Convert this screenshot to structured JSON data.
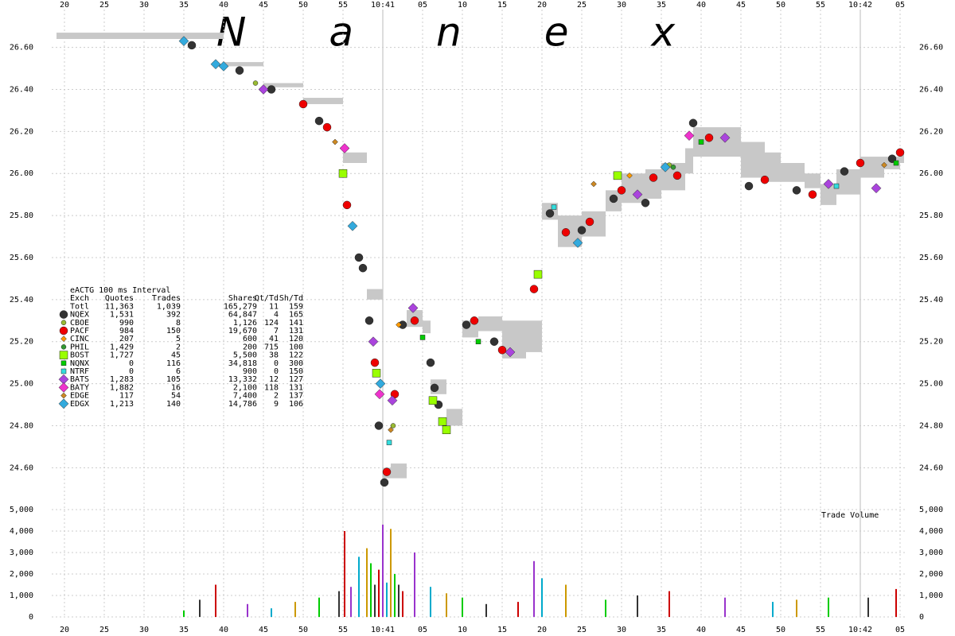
{
  "chart_data": {
    "type": "scatter",
    "title": "Nanex",
    "title_color": "#9999ff",
    "xlim": [
      18.4,
      125.9
    ],
    "xticks": [
      20,
      25,
      30,
      35,
      40,
      45,
      50,
      55,
      {
        "value": 60,
        "label": "10:41"
      },
      {
        "value": 65,
        "label": "05"
      },
      {
        "value": 70,
        "label": "10"
      },
      {
        "value": 75,
        "label": "15"
      },
      {
        "value": 80,
        "label": "20"
      },
      {
        "value": 85,
        "label": "25"
      },
      {
        "value": 90,
        "label": "30"
      },
      {
        "value": 95,
        "label": "35"
      },
      {
        "value": 100,
        "label": "40"
      },
      {
        "value": 105,
        "label": "45"
      },
      {
        "value": 110,
        "label": "50"
      },
      {
        "value": 115,
        "label": "55"
      },
      {
        "value": 120,
        "label": "10:42"
      },
      {
        "value": 125,
        "label": "05"
      }
    ],
    "ylim": [
      24.45,
      26.78
    ],
    "yticks": [
      {
        "value": 24.6,
        "label": "24.60"
      },
      {
        "value": 24.8,
        "label": "24.80"
      },
      {
        "value": 25.0,
        "label": "25.00"
      },
      {
        "value": 25.2,
        "label": "25.20"
      },
      {
        "value": 25.4,
        "label": "25.40"
      },
      {
        "value": 25.6,
        "label": "25.60"
      },
      {
        "value": 25.8,
        "label": "25.80"
      },
      {
        "value": 26.0,
        "label": "26.00"
      },
      {
        "value": 26.2,
        "label": "26.20"
      },
      {
        "value": 26.4,
        "label": "26.40"
      },
      {
        "value": 26.6,
        "label": "26.60"
      }
    ],
    "grid": true,
    "band": {
      "color": "#c8c8c8",
      "x": [
        19,
        35,
        40,
        45,
        50,
        55,
        58,
        60,
        61,
        63,
        65,
        66,
        68,
        70,
        72,
        75,
        78,
        80,
        82,
        85,
        88,
        90,
        93,
        95,
        98,
        99,
        104,
        105,
        108,
        110,
        113,
        115,
        117,
        120,
        123,
        125
      ],
      "low": [
        26.64,
        26.64,
        26.51,
        26.41,
        26.33,
        26.05,
        25.4,
        24.55,
        24.55,
        25.27,
        25.24,
        24.95,
        24.8,
        25.22,
        25.25,
        25.12,
        25.15,
        25.78,
        25.65,
        25.7,
        25.82,
        25.86,
        25.88,
        25.92,
        26.0,
        26.08,
        26.08,
        25.98,
        25.96,
        25.96,
        25.93,
        25.85,
        25.9,
        25.98,
        26.02,
        26.05
      ],
      "high": [
        26.67,
        26.67,
        26.53,
        26.43,
        26.36,
        26.1,
        25.45,
        24.6,
        24.62,
        25.35,
        25.3,
        25.02,
        24.88,
        25.3,
        25.32,
        25.3,
        25.3,
        25.86,
        25.8,
        25.82,
        25.92,
        26.0,
        26.02,
        26.05,
        26.12,
        26.22,
        26.22,
        26.15,
        26.1,
        26.05,
        26.0,
        25.95,
        26.02,
        26.08,
        26.08,
        26.1
      ]
    },
    "stats": {
      "title": "eACTG 100 ms Interval",
      "columns": [
        "Exch",
        "Quotes",
        "Trades",
        "Shares",
        "Qt/Td",
        "Sh/Td"
      ],
      "total": [
        "Totl",
        "11,363",
        "1,039",
        "165,279",
        "11",
        "159"
      ]
    },
    "series": [
      {
        "name": "NQEX",
        "quotes": "1,531",
        "trades": "392",
        "shares": "64,847",
        "qt_td": "4",
        "sh_td": "165",
        "color": "#333333",
        "marker": "circle",
        "x": [
          36,
          42,
          46,
          52,
          57,
          57.5,
          58.3,
          59.5,
          60.2,
          62.5,
          66,
          66.5,
          67,
          70.5,
          74,
          81,
          85,
          89,
          93,
          99,
          106,
          112,
          118,
          124
        ],
        "values": [
          26.61,
          26.49,
          26.4,
          26.25,
          25.6,
          25.55,
          25.3,
          24.8,
          24.53,
          25.28,
          25.1,
          24.98,
          24.9,
          25.28,
          25.2,
          25.81,
          25.73,
          25.88,
          25.86,
          26.24,
          25.94,
          25.92,
          26.01,
          26.07
        ]
      },
      {
        "name": "CBOE",
        "quotes": "990",
        "trades": "8",
        "shares": "1,126",
        "qt_td": "124",
        "sh_td": "141",
        "color": "#99bb33",
        "marker": "dot",
        "x": [
          44,
          61.3,
          96
        ],
        "values": [
          26.43,
          24.8,
          26.04
        ]
      },
      {
        "name": "PACF",
        "quotes": "984",
        "trades": "150",
        "shares": "19,670",
        "qt_td": "7",
        "sh_td": "131",
        "color": "#ee0000",
        "marker": "circle",
        "x": [
          50,
          53,
          55.5,
          59,
          60.5,
          61.5,
          64,
          71.5,
          75,
          79,
          83,
          86,
          90,
          94,
          97,
          101,
          108,
          114,
          120,
          125
        ],
        "values": [
          26.33,
          26.22,
          25.85,
          25.1,
          24.58,
          24.95,
          25.3,
          25.3,
          25.16,
          25.45,
          25.72,
          25.77,
          25.92,
          25.98,
          25.99,
          26.17,
          25.97,
          25.9,
          26.05,
          26.1
        ]
      },
      {
        "name": "CINC",
        "quotes": "207",
        "trades": "5",
        "shares": "600",
        "qt_td": "41",
        "sh_td": "120",
        "color": "#ff9900",
        "marker": "small-diamond",
        "x": [
          62,
          91
        ],
        "values": [
          25.28,
          25.99
        ]
      },
      {
        "name": "PHIL",
        "quotes": "1,429",
        "trades": "2",
        "shares": "200",
        "qt_td": "715",
        "sh_td": "100",
        "color": "#339933",
        "marker": "dot",
        "x": [
          96.5
        ],
        "values": [
          26.03
        ]
      },
      {
        "name": "BOST",
        "quotes": "1,727",
        "trades": "45",
        "shares": "5,500",
        "qt_td": "38",
        "sh_td": "122",
        "color": "#99ff00",
        "marker": "square",
        "x": [
          55,
          59.2,
          66.3,
          67.5,
          68,
          79.5,
          89.5
        ],
        "values": [
          26.0,
          25.05,
          24.92,
          24.82,
          24.78,
          25.52,
          25.99
        ]
      },
      {
        "name": "NQNX",
        "quotes": "0",
        "trades": "116",
        "shares": "34,818",
        "qt_td": "0",
        "sh_td": "300",
        "color": "#00cc00",
        "marker": "small-square",
        "x": [
          65,
          72,
          100,
          124.5
        ],
        "values": [
          25.22,
          25.2,
          26.15,
          26.05
        ]
      },
      {
        "name": "NTRF",
        "quotes": "0",
        "trades": "6",
        "shares": "900",
        "qt_td": "0",
        "sh_td": "150",
        "color": "#33dddd",
        "marker": "small-square",
        "x": [
          60.8,
          81.5,
          117
        ],
        "values": [
          24.72,
          25.84,
          25.94
        ]
      },
      {
        "name": "BATS",
        "quotes": "1,283",
        "trades": "105",
        "shares": "13,332",
        "qt_td": "12",
        "sh_td": "127",
        "color": "#aa44dd",
        "marker": "diamond",
        "x": [
          45,
          58.8,
          61.2,
          63.8,
          76,
          92,
          103,
          116,
          122
        ],
        "values": [
          26.4,
          25.2,
          24.92,
          25.36,
          25.15,
          25.9,
          26.17,
          25.95,
          25.93
        ]
      },
      {
        "name": "BATY",
        "quotes": "1,882",
        "trades": "16",
        "shares": "2,100",
        "qt_td": "118",
        "sh_td": "131",
        "color": "#ee33cc",
        "marker": "diamond",
        "x": [
          55.2,
          59.6,
          98.5
        ],
        "values": [
          26.12,
          24.95,
          26.18
        ]
      },
      {
        "name": "EDGE",
        "quotes": "117",
        "trades": "54",
        "shares": "7,400",
        "qt_td": "2",
        "sh_td": "137",
        "color": "#cc8822",
        "marker": "small-diamond",
        "x": [
          54,
          61,
          86.5,
          123
        ],
        "values": [
          26.15,
          24.78,
          25.95,
          26.04
        ]
      },
      {
        "name": "EDGX",
        "quotes": "1,213",
        "trades": "140",
        "shares": "14,786",
        "qt_td": "9",
        "sh_td": "106",
        "color": "#33aadd",
        "marker": "diamond",
        "x": [
          35,
          39,
          40,
          56.2,
          59.7,
          84.5,
          95.5
        ],
        "values": [
          26.63,
          26.52,
          26.51,
          25.75,
          25.0,
          25.67,
          26.03
        ]
      }
    ],
    "volume": {
      "label": "Trade Volume",
      "ylim": [
        0,
        5000
      ],
      "yticks": [
        0,
        {
          "value": 1000,
          "label": "1,000"
        },
        {
          "value": 2000,
          "label": "2,000"
        },
        {
          "value": 3000,
          "label": "3,000"
        },
        {
          "value": 4000,
          "label": "4,000"
        },
        {
          "value": 5000,
          "label": "5,000"
        }
      ],
      "colors": [
        "#00cc00",
        "#333333",
        "#cc0000",
        "#9933cc",
        "#00aacc",
        "#cc9900"
      ],
      "x": [
        35,
        37,
        39,
        43,
        46,
        49,
        52,
        54.5,
        55.2,
        56,
        57,
        58,
        58.5,
        59,
        59.5,
        60,
        60.5,
        61,
        61.5,
        62,
        62.5,
        64,
        66,
        68,
        70,
        73,
        77,
        79,
        80,
        83,
        88,
        92,
        96,
        103,
        109,
        112,
        116,
        121,
        124.5
      ],
      "values": [
        300,
        800,
        1500,
        600,
        400,
        700,
        900,
        1200,
        4000,
        1400,
        2800,
        3200,
        2500,
        1500,
        2200,
        4300,
        1600,
        4100,
        2000,
        1500,
        1200,
        3000,
        1400,
        1100,
        900,
        600,
        700,
        2600,
        1800,
        1500,
        800,
        1000,
        1200,
        900,
        700,
        800,
        900,
        900,
        1300
      ]
    }
  }
}
